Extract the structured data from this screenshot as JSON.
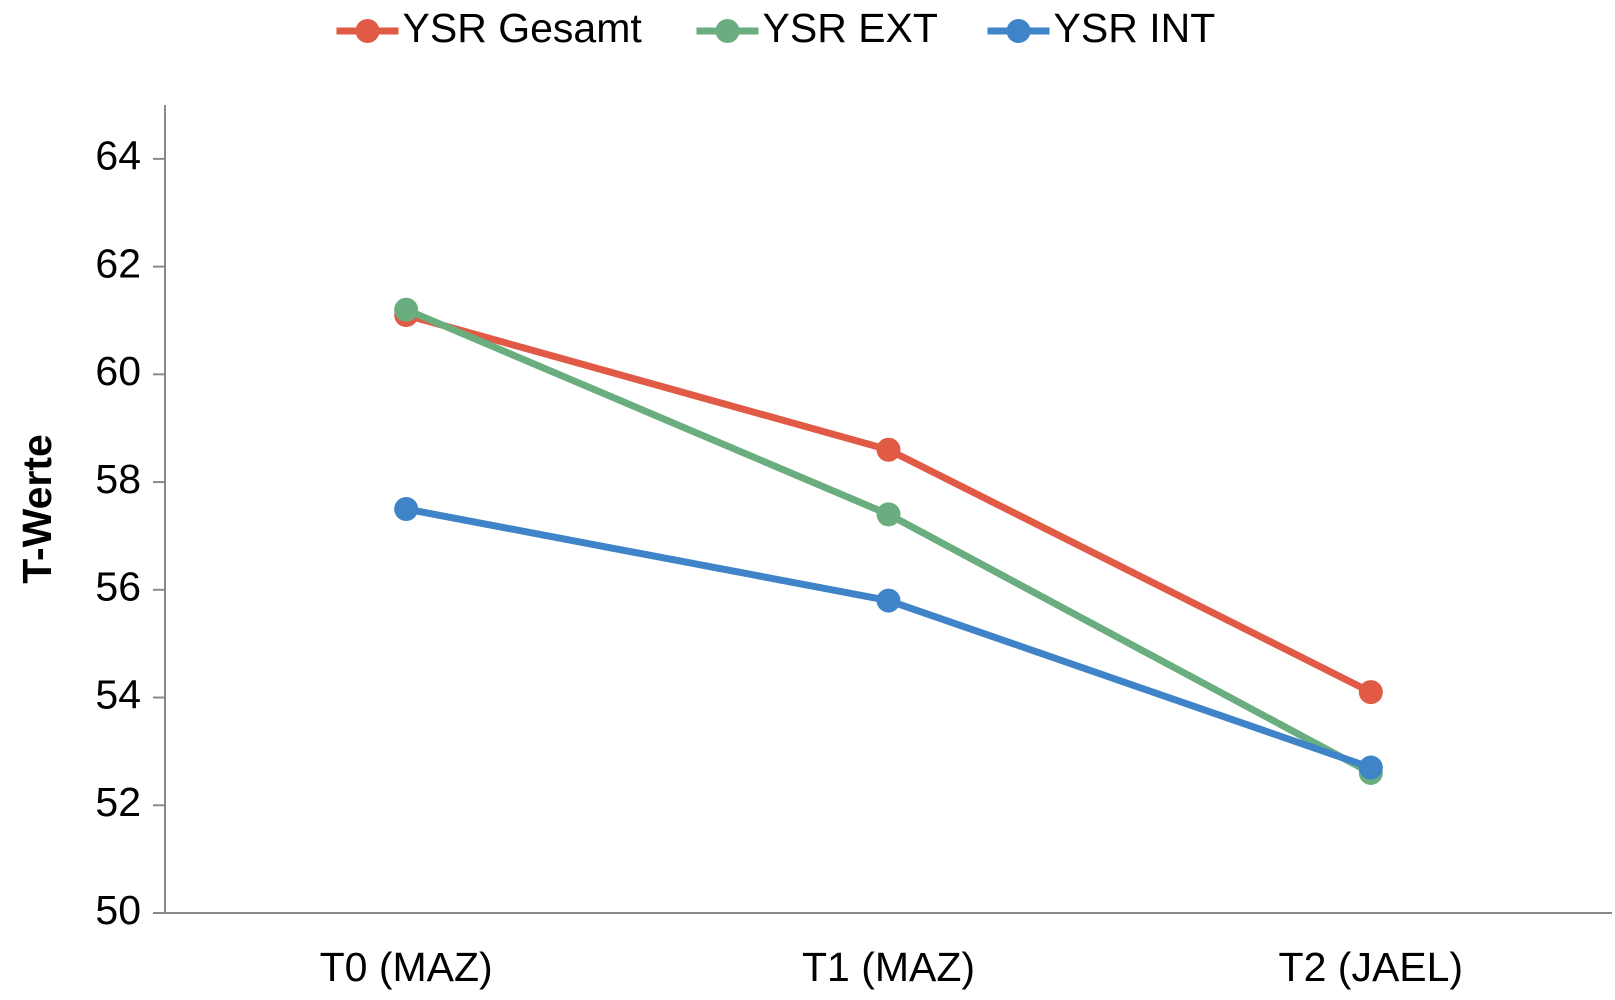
{
  "chart_data": {
    "type": "line",
    "ylabel": "T-Werte",
    "categories": [
      "T0 (MAZ)",
      "T1 (MAZ)",
      "T2 (JAEL)"
    ],
    "series": [
      {
        "name": "YSR Gesamt",
        "color": "#e15a45",
        "values": [
          61.1,
          58.6,
          54.1
        ]
      },
      {
        "name": "YSR EXT",
        "color": "#6aae7f",
        "values": [
          61.2,
          57.4,
          52.6
        ]
      },
      {
        "name": "YSR INT",
        "color": "#3f84c8",
        "values": [
          57.5,
          55.8,
          52.7
        ]
      }
    ],
    "ylim": [
      50,
      65
    ],
    "yticks": [
      50,
      52,
      54,
      56,
      58,
      60,
      62,
      64
    ],
    "grid": false,
    "legend": "top"
  }
}
